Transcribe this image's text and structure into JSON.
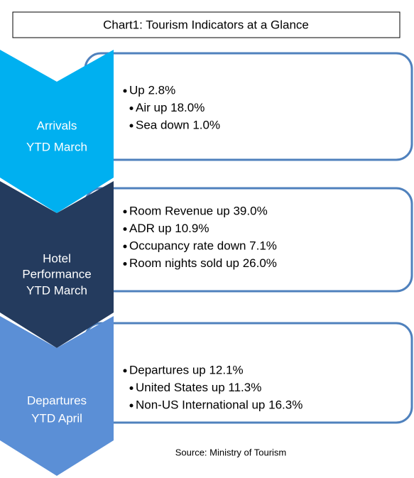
{
  "title": "Chart1: Tourism Indicators at a Glance",
  "sections": [
    {
      "label": [
        "Arrivals",
        "YTD March"
      ],
      "bullets": [
        "Up 2.8%"
      ],
      "sub_bullets": [
        "Air up 18.0%",
        "Sea down 1.0%"
      ]
    },
    {
      "label": [
        "Hotel",
        "Performance",
        "YTD March"
      ],
      "bullets": [
        "Room Revenue up 39.0%",
        "ADR up 10.9%",
        "Occupancy rate down 7.1%",
        "Room nights sold up 26.0%"
      ]
    },
    {
      "label": [
        "Departures",
        "YTD April"
      ],
      "bullets": [
        "Departures up 12.1%"
      ],
      "sub_bullets": [
        "United States up 11.3%",
        "Non-US International up 16.3%"
      ]
    }
  ],
  "source": "Source: Ministry of Tourism"
}
